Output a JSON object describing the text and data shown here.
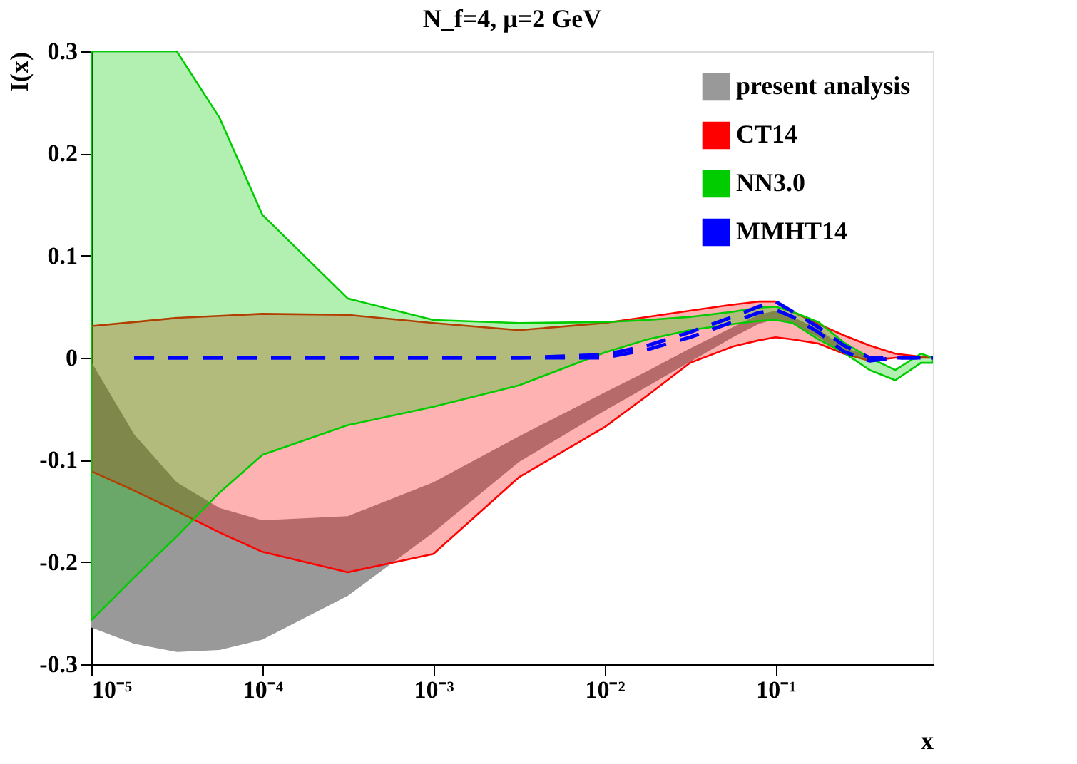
{
  "chart_data": {
    "type": "line",
    "title": "N_f=4, μ=2 GeV",
    "xlabel": "x",
    "ylabel": "I(x)",
    "log": "x",
    "x": [
      1e-05,
      1.78e-05,
      3.16e-05,
      5.62e-05,
      0.0001,
      0.000316,
      0.001,
      0.00316,
      0.01,
      0.0178,
      0.0316,
      0.0562,
      0.0794,
      0.1,
      0.126,
      0.178,
      0.251,
      0.355,
      0.501,
      0.708,
      0.832
    ],
    "series": [
      {
        "name": "present analysis",
        "color": "#999999",
        "values": [
          null,
          null,
          null,
          null,
          null,
          null,
          null,
          null,
          null,
          null,
          null,
          null,
          null,
          null,
          null,
          null,
          null,
          null,
          null,
          null,
          null
        ],
        "lower": [
          -0.264,
          -0.28,
          -0.288,
          -0.286,
          -0.276,
          -0.233,
          -0.171,
          -0.102,
          -0.052,
          -0.028,
          -0.004,
          0.02,
          0.033,
          0.038,
          0.033,
          0.02,
          0.004,
          -0.002,
          0.0,
          0.0,
          0.0
        ],
        "upper": [
          -0.004,
          -0.075,
          -0.122,
          -0.147,
          -0.159,
          -0.155,
          -0.122,
          -0.077,
          -0.034,
          -0.013,
          0.009,
          0.03,
          0.042,
          0.046,
          0.04,
          0.028,
          0.01,
          0.002,
          0.0,
          0.0,
          0.0
        ]
      },
      {
        "name": "CT14",
        "color": "#ff0000",
        "values": [
          null,
          null,
          null,
          null,
          null,
          null,
          null,
          null,
          null,
          null,
          null,
          null,
          null,
          null,
          null,
          null,
          null,
          null,
          null,
          null,
          null
        ],
        "lower": [
          -0.111,
          -0.13,
          -0.15,
          -0.171,
          -0.19,
          -0.21,
          -0.192,
          -0.117,
          -0.068,
          -0.037,
          -0.005,
          0.011,
          0.017,
          0.02,
          0.018,
          0.014,
          0.004,
          -0.003,
          0.0,
          0.0,
          0.0
        ],
        "upper": [
          0.031,
          0.035,
          0.039,
          0.041,
          0.043,
          0.042,
          0.034,
          0.027,
          0.034,
          0.04,
          0.046,
          0.052,
          0.055,
          0.055,
          0.045,
          0.033,
          0.022,
          0.012,
          0.004,
          0.001,
          0.0
        ]
      },
      {
        "name": "NN3.0",
        "color": "#00cc00",
        "values": [
          null,
          null,
          null,
          null,
          null,
          null,
          null,
          null,
          null,
          null,
          null,
          null,
          null,
          null,
          null,
          null,
          null,
          null,
          null,
          null,
          null
        ],
        "lower": [
          -0.257,
          -0.215,
          -0.175,
          -0.132,
          -0.095,
          -0.066,
          -0.048,
          -0.027,
          0.005,
          0.018,
          0.027,
          0.033,
          0.036,
          0.037,
          0.034,
          0.018,
          0.005,
          -0.012,
          -0.022,
          -0.005,
          -0.005
        ],
        "upper": [
          0.3,
          0.3,
          0.3,
          0.235,
          0.14,
          0.058,
          0.037,
          0.034,
          0.035,
          0.037,
          0.04,
          0.045,
          0.049,
          0.05,
          0.045,
          0.035,
          0.015,
          0.0,
          -0.012,
          0.004,
          0.0
        ]
      },
      {
        "name": "MMHT14",
        "color": "#0000ff",
        "line_style": "dashed",
        "values": [
          null,
          0,
          0,
          0,
          0,
          0,
          0,
          0,
          0.003,
          0.012,
          0.025,
          0.04,
          0.05,
          0.055,
          0.045,
          0.03,
          0.012,
          0.0,
          0,
          0,
          0
        ]
      },
      {
        "color": "#0000ff",
        "line_style": "dashed",
        "values": [
          null,
          0,
          0,
          0,
          0,
          0,
          0,
          0,
          0.0,
          0.008,
          0.02,
          0.035,
          0.044,
          0.047,
          0.04,
          0.025,
          0.006,
          -0.003,
          0,
          0,
          0
        ]
      }
    ],
    "xlim": [
      1e-05,
      0.832
    ],
    "xticks": [
      {
        "value": 1e-05,
        "label": "10⁻⁵"
      },
      {
        "value": 0.0001,
        "label": "10⁻⁴"
      },
      {
        "value": 0.001,
        "label": "10⁻³"
      },
      {
        "value": 0.01,
        "label": "10⁻²"
      },
      {
        "value": 0.1,
        "label": "10⁻¹"
      }
    ],
    "ylim": [
      -0.3,
      0.3
    ],
    "yticks": [
      -0.3,
      -0.2,
      -0.1,
      0,
      0.1,
      0.2,
      0.3
    ],
    "legend": "top right"
  }
}
